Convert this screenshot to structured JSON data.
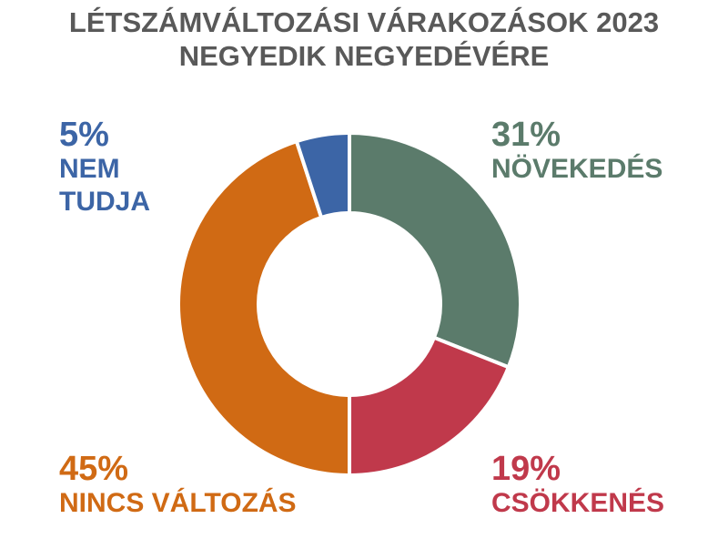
{
  "chart_data": {
    "type": "donut",
    "title": "LÉTSZÁMVÁLTOZÁSI VÁRAKOZÁSOK 2023\nNEGYEDIK NEGYEDÉVÉRE",
    "categories": [
      "NÖVEKEDÉS",
      "CSÖKKENÉS",
      "NINCS VÁLTOZÁS",
      "NEM\nTUDJA"
    ],
    "values": [
      31,
      19,
      45,
      5
    ],
    "value_labels": [
      "31%",
      "19%",
      "45%",
      "5%"
    ],
    "colors": [
      "#5b7b6b",
      "#c0394b",
      "#d06a14",
      "#3c65a6"
    ]
  }
}
